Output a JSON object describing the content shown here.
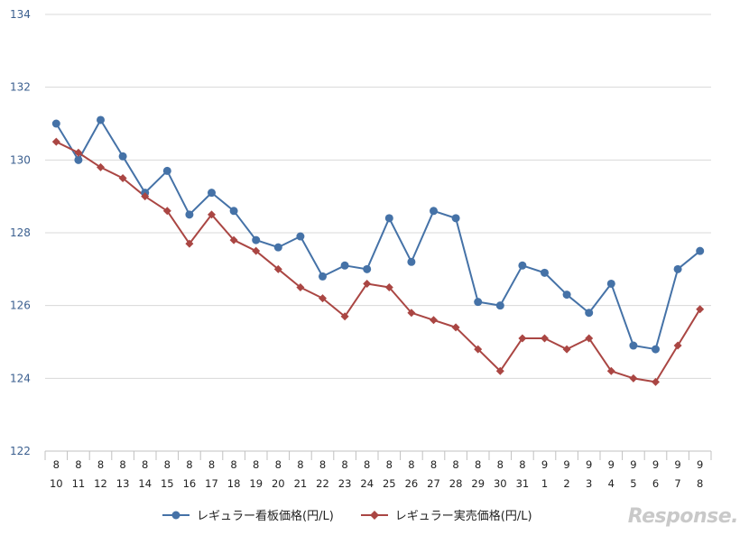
{
  "chart_data": {
    "type": "line",
    "title": "",
    "xlabel": "",
    "ylabel": "",
    "ylim": [
      122,
      134
    ],
    "yticks": [
      122,
      124,
      126,
      128,
      130,
      132,
      134
    ],
    "grid": true,
    "legend_position": "bottom",
    "categories": [
      {
        "month": "8",
        "day": "10"
      },
      {
        "month": "8",
        "day": "11"
      },
      {
        "month": "8",
        "day": "12"
      },
      {
        "month": "8",
        "day": "13"
      },
      {
        "month": "8",
        "day": "14"
      },
      {
        "month": "8",
        "day": "15"
      },
      {
        "month": "8",
        "day": "16"
      },
      {
        "month": "8",
        "day": "17"
      },
      {
        "month": "8",
        "day": "18"
      },
      {
        "month": "8",
        "day": "19"
      },
      {
        "month": "8",
        "day": "20"
      },
      {
        "month": "8",
        "day": "21"
      },
      {
        "month": "8",
        "day": "22"
      },
      {
        "month": "8",
        "day": "23"
      },
      {
        "month": "8",
        "day": "24"
      },
      {
        "month": "8",
        "day": "25"
      },
      {
        "month": "8",
        "day": "26"
      },
      {
        "month": "8",
        "day": "27"
      },
      {
        "month": "8",
        "day": "28"
      },
      {
        "month": "8",
        "day": "29"
      },
      {
        "month": "8",
        "day": "30"
      },
      {
        "month": "8",
        "day": "31"
      },
      {
        "month": "9",
        "day": "1"
      },
      {
        "month": "9",
        "day": "2"
      },
      {
        "month": "9",
        "day": "3"
      },
      {
        "month": "9",
        "day": "4"
      },
      {
        "month": "9",
        "day": "5"
      },
      {
        "month": "9",
        "day": "6"
      },
      {
        "month": "9",
        "day": "7"
      },
      {
        "month": "9",
        "day": "8"
      }
    ],
    "series": [
      {
        "name": "レギュラー看板価格(円/L)",
        "color": "#4572a7",
        "marker": "circle",
        "values": [
          131.0,
          130.0,
          131.1,
          130.1,
          129.1,
          129.7,
          128.5,
          129.1,
          128.6,
          127.8,
          127.6,
          127.9,
          126.8,
          127.1,
          127.0,
          128.4,
          127.2,
          128.6,
          128.4,
          126.1,
          126.0,
          127.1,
          126.9,
          126.3,
          125.8,
          126.6,
          124.9,
          124.8,
          127.0,
          127.5
        ]
      },
      {
        "name": "レギュラー実売価格(円/L)",
        "color": "#aa4643",
        "marker": "diamond",
        "values": [
          130.5,
          130.2,
          129.8,
          129.5,
          129.0,
          128.6,
          127.7,
          128.5,
          127.8,
          127.5,
          127.0,
          126.5,
          126.2,
          125.7,
          126.6,
          126.5,
          125.8,
          125.6,
          125.4,
          124.8,
          124.2,
          125.1,
          125.1,
          124.8,
          125.1,
          124.2,
          124.0,
          123.9,
          124.9,
          125.9
        ]
      }
    ]
  },
  "watermark": "Response."
}
